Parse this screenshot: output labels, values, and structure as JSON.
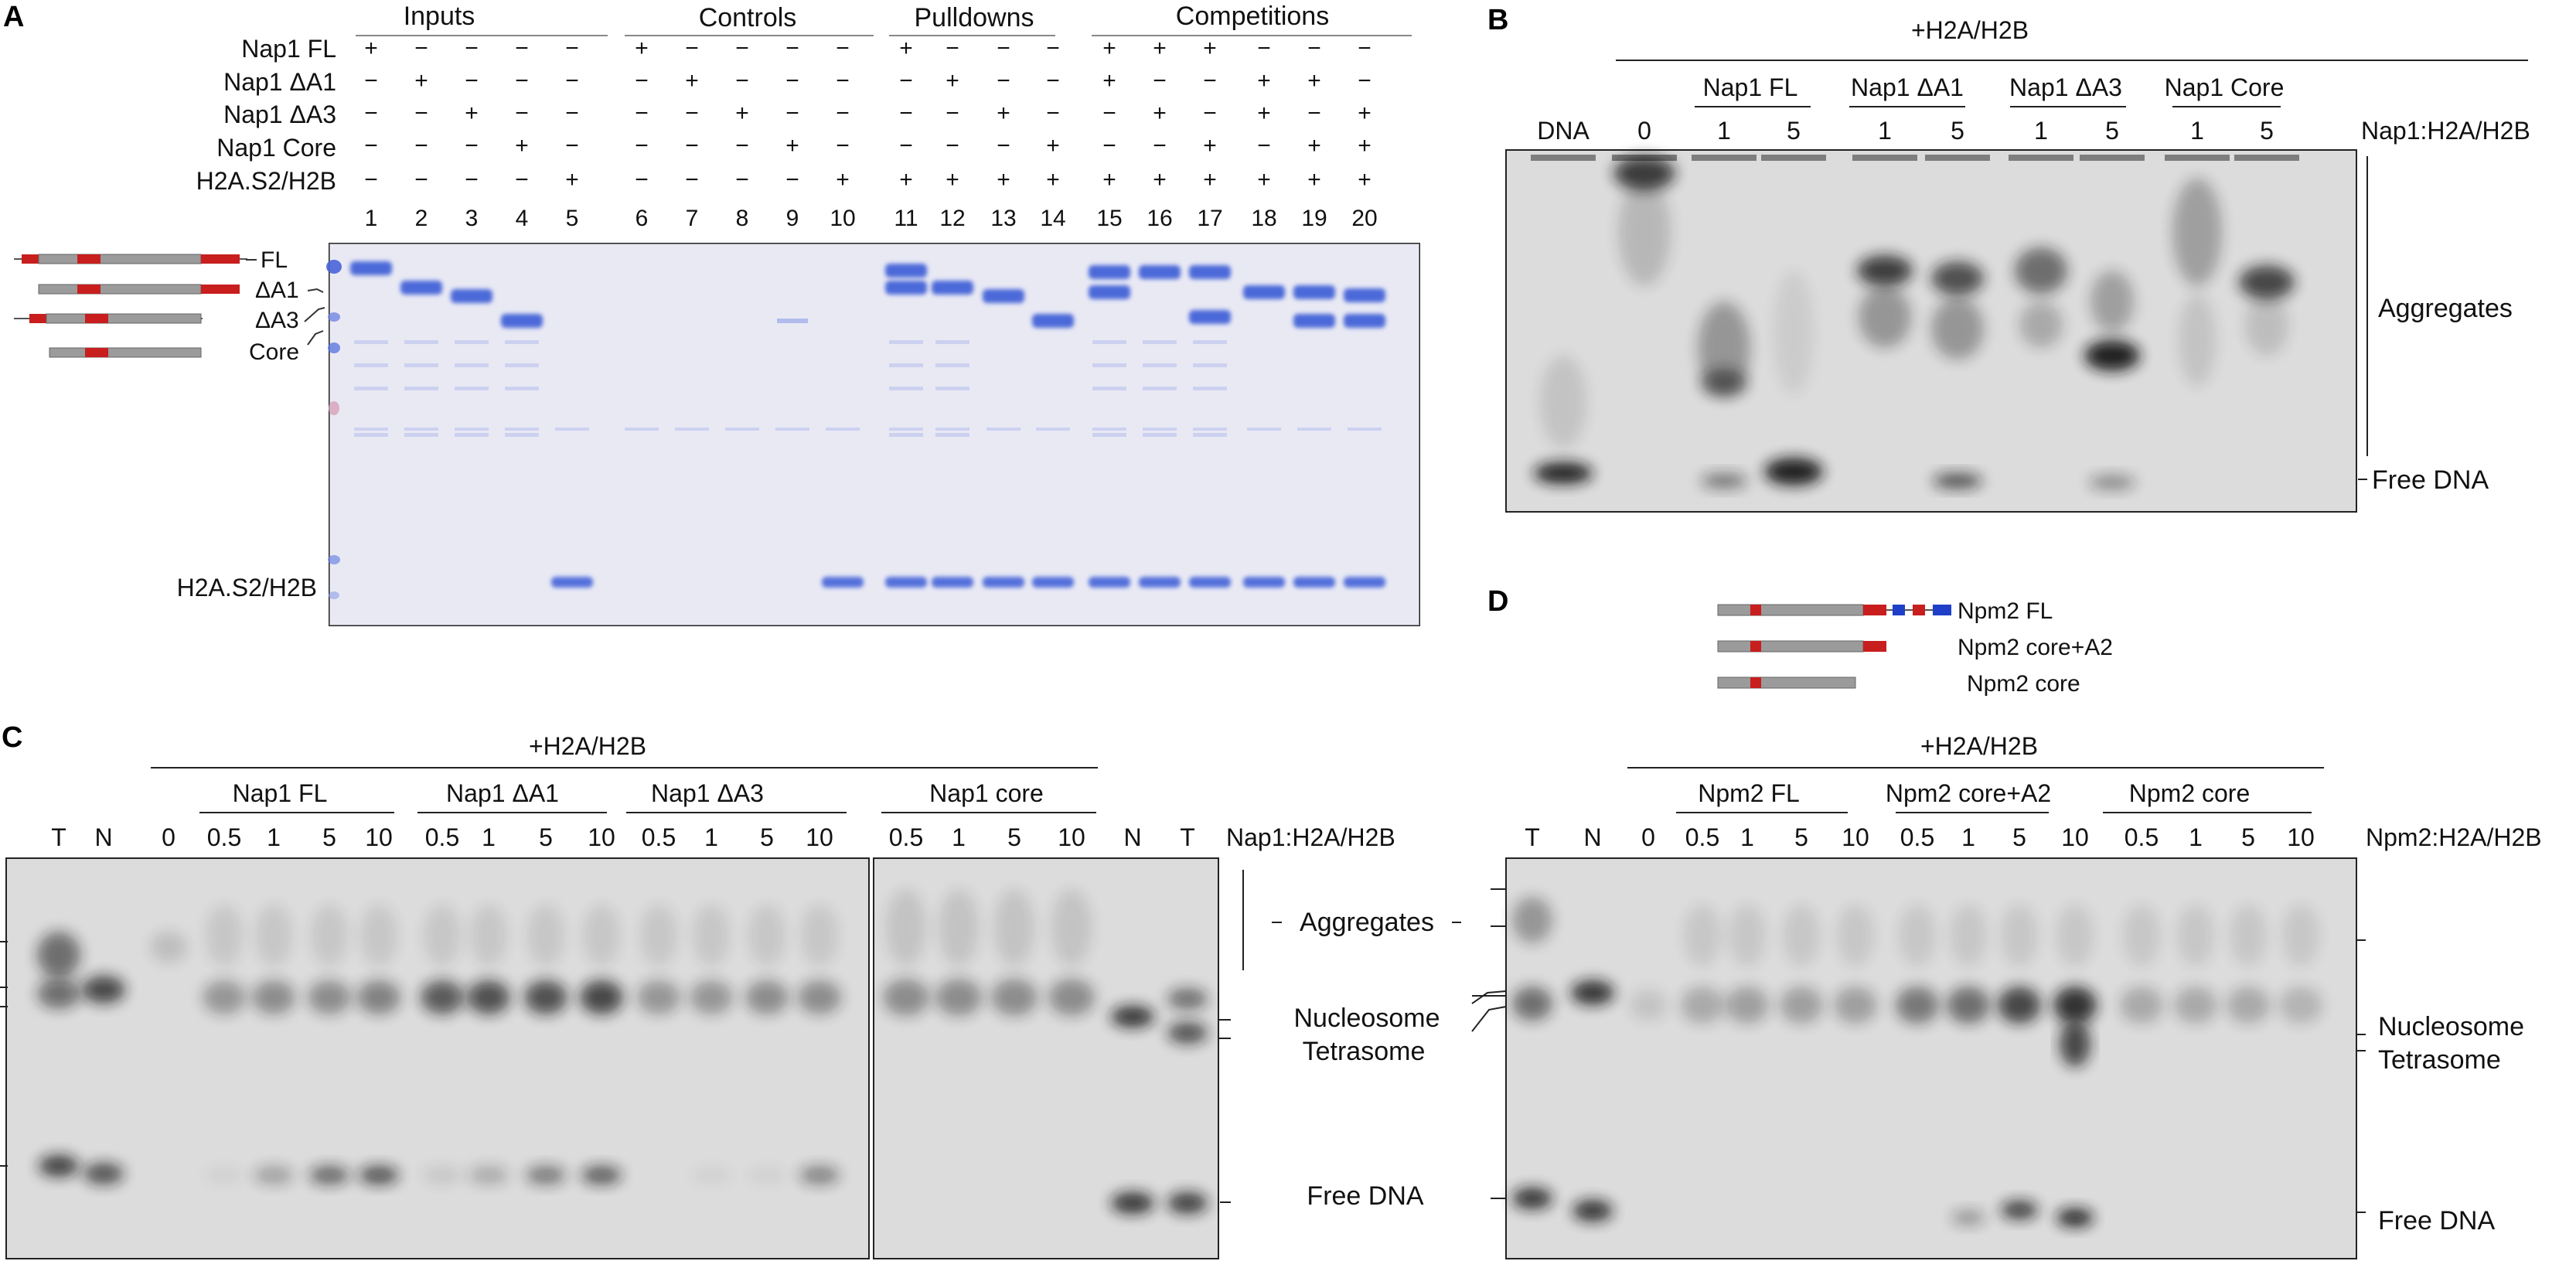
{
  "panels": {
    "a": {
      "letter": "A",
      "group_headers": [
        "Inputs",
        "Controls",
        "Pulldowns",
        "Competitions"
      ],
      "row_labels": [
        "Nap1 FL",
        "Nap1 ΔA1",
        "Nap1 ΔA3",
        "Nap1 Core",
        "H2A.S2/H2B"
      ],
      "lane_signs": [
        [
          "+",
          "−",
          "−",
          "−",
          "−",
          "+",
          "−",
          "−",
          "−",
          "−",
          "+",
          "−",
          "−",
          "−",
          "+",
          "+",
          "+",
          "−",
          "−",
          "−"
        ],
        [
          "−",
          "+",
          "−",
          "−",
          "−",
          "−",
          "+",
          "−",
          "−",
          "−",
          "−",
          "+",
          "−",
          "−",
          "+",
          "−",
          "−",
          "+",
          "+",
          "−"
        ],
        [
          "−",
          "−",
          "+",
          "−",
          "−",
          "−",
          "−",
          "+",
          "−",
          "−",
          "−",
          "−",
          "+",
          "−",
          "−",
          "+",
          "−",
          "+",
          "−",
          "+"
        ],
        [
          "−",
          "−",
          "−",
          "+",
          "−",
          "−",
          "−",
          "−",
          "+",
          "−",
          "−",
          "−",
          "−",
          "+",
          "−",
          "−",
          "+",
          "−",
          "+",
          "+"
        ],
        [
          "−",
          "−",
          "−",
          "−",
          "+",
          "−",
          "−",
          "−",
          "−",
          "+",
          "+",
          "+",
          "+",
          "+",
          "+",
          "+",
          "+",
          "+",
          "+",
          "+"
        ]
      ],
      "lane_numbers": [
        "1",
        "2",
        "3",
        "4",
        "5",
        "6",
        "7",
        "8",
        "9",
        "10",
        "11",
        "12",
        "13",
        "14",
        "15",
        "16",
        "17",
        "18",
        "19",
        "20"
      ],
      "construct_labels": [
        "FL",
        "ΔA1",
        "ΔA3",
        "Core"
      ],
      "histone_label": "H2A.S2/H2B"
    },
    "b": {
      "letter": "B",
      "top_label": "+H2A/H2B",
      "groups": [
        "Nap1 FL",
        "Nap1 ΔA1",
        "Nap1 ΔA3",
        "Nap1 Core"
      ],
      "lanes": [
        "DNA",
        "0",
        "1",
        "5",
        "1",
        "5",
        "1",
        "5",
        "1",
        "5"
      ],
      "ratio_label": "Nap1:H2A/H2B",
      "side_labels": [
        "Aggregates",
        "Free DNA"
      ]
    },
    "c": {
      "letter": "C",
      "top_label": "+H2A/H2B",
      "groups": [
        "Nap1 FL",
        "Nap1 ΔA1",
        "Nap1 ΔA3",
        "Nap1 core"
      ],
      "lanes_gel1": [
        "T",
        "N",
        "0",
        "0.5",
        "1",
        "5",
        "10",
        "0.5",
        "1",
        "5",
        "10",
        "0.5",
        "1",
        "5",
        "10"
      ],
      "lanes_gel2": [
        "0.5",
        "1",
        "5",
        "10",
        "N",
        "T"
      ],
      "ratio_label": "Nap1:H2A/H2B",
      "side_labels": [
        "Aggregates",
        "Nucleosome",
        "Tetrasome",
        "Free DNA"
      ]
    },
    "d": {
      "letter": "D",
      "constructs": [
        "Npm2 FL",
        "Npm2 core+A2",
        "Npm2 core"
      ],
      "top_label": "+H2A/H2B",
      "groups": [
        "Npm2 FL",
        "Npm2 core+A2",
        "Npm2 core"
      ],
      "lanes": [
        "T",
        "N",
        "0",
        "0.5",
        "1",
        "5",
        "10",
        "0.5",
        "1",
        "5",
        "10",
        "0.5",
        "1",
        "5",
        "10"
      ],
      "ratio_label": "Npm2:H2A/H2B",
      "side_labels": [
        "Nucleosome",
        "Tetrasome",
        "Free DNA"
      ]
    }
  },
  "colors": {
    "coomassie_band": "#3b5bd6",
    "coomassie_bg": "#efeff6",
    "gel_bg": "#dcdcdc",
    "domain_red": "#c81e1e",
    "domain_blue": "#1f3fc8",
    "bar_gray": "#9b9b9b"
  }
}
